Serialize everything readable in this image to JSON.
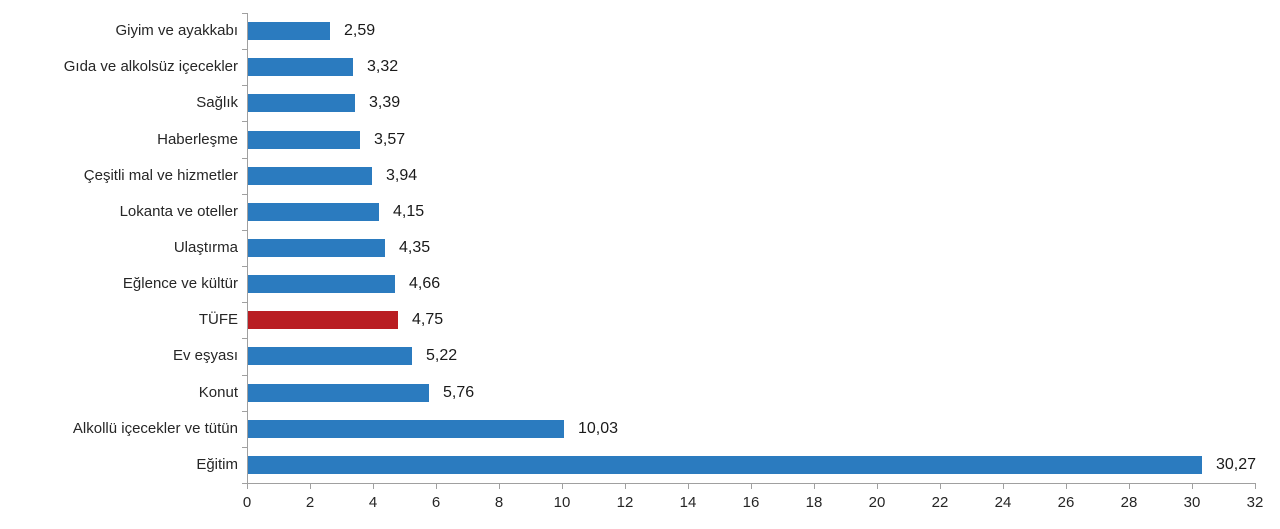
{
  "chart_data": {
    "type": "bar",
    "orientation": "horizontal",
    "title": "",
    "xlabel": "",
    "ylabel": "",
    "categories": [
      "Giyim ve ayakkabı",
      "Gıda ve alkolsüz içecekler",
      "Sağlık",
      "Haberleşme",
      "Çeşitli mal ve hizmetler",
      "Lokanta ve oteller",
      "Ulaştırma",
      "Eğlence ve kültür",
      "TÜFE",
      "Ev eşyası",
      "Konut",
      "Alkollü içecekler ve tütün",
      "Eğitim"
    ],
    "values": [
      2.59,
      3.32,
      3.39,
      3.57,
      3.94,
      4.15,
      4.35,
      4.66,
      4.75,
      5.22,
      5.76,
      10.03,
      30.27
    ],
    "value_labels": [
      "2,59",
      "3,32",
      "3,39",
      "3,57",
      "3,94",
      "4,15",
      "4,35",
      "4,66",
      "4,75",
      "5,22",
      "5,76",
      "10,03",
      "30,27"
    ],
    "highlight_category": "TÜFE",
    "colors": {
      "bar": "#2b7bbf",
      "highlight": "#b91d22",
      "axis": "#a0a0a0",
      "text": "#262626"
    },
    "xlim": [
      0,
      32
    ],
    "x_ticks": [
      0,
      2,
      4,
      6,
      8,
      10,
      12,
      14,
      16,
      18,
      20,
      22,
      24,
      26,
      28,
      30,
      32
    ],
    "grid": false,
    "legend": null
  }
}
